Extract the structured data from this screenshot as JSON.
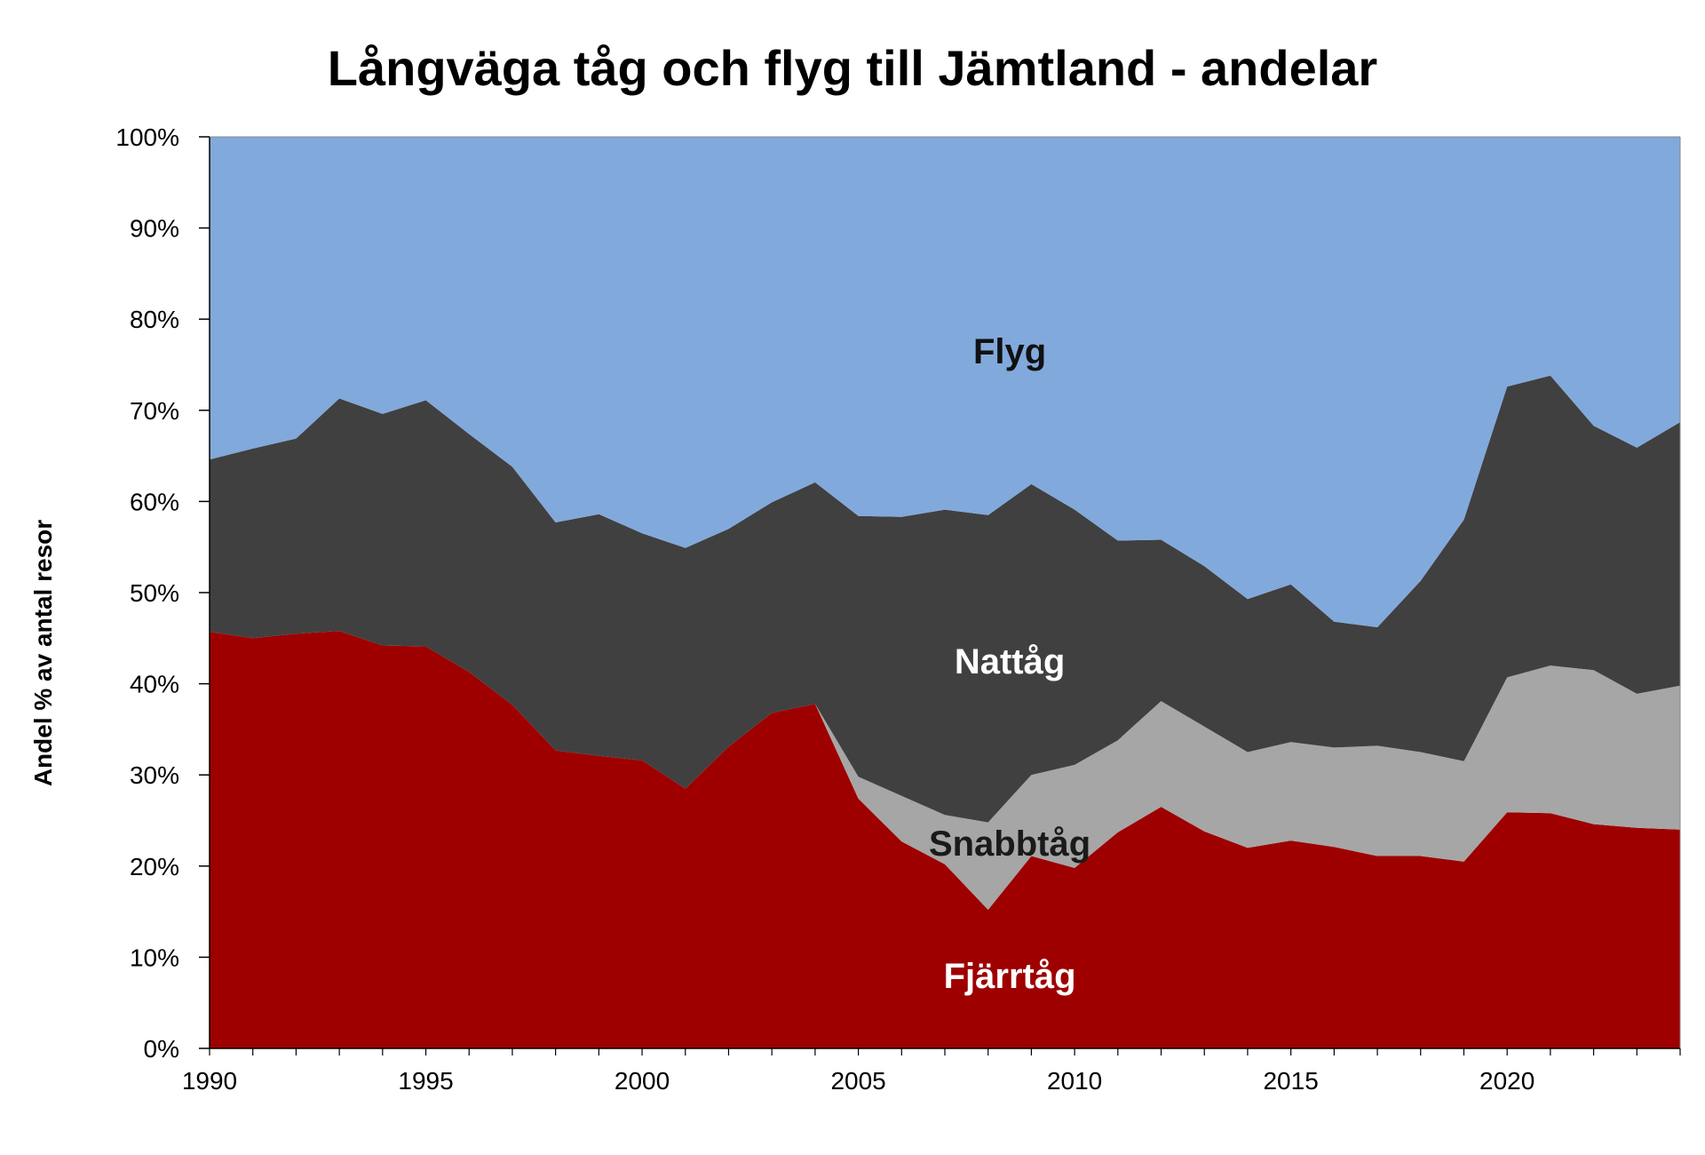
{
  "chart_data": {
    "type": "area",
    "stacked": true,
    "title": "Långväga tåg och flyg till Jämtland - andelar",
    "xlabel": "",
    "ylabel": "Andel % av antal resor",
    "x": [
      1990,
      1991,
      1992,
      1993,
      1994,
      1995,
      1996,
      1997,
      1998,
      1999,
      2000,
      2001,
      2002,
      2003,
      2004,
      2005,
      2006,
      2007,
      2008,
      2009,
      2010,
      2011,
      2012,
      2013,
      2014,
      2015,
      2016,
      2017,
      2018,
      2019,
      2020,
      2021,
      2022,
      2023,
      2024
    ],
    "xlim": [
      1990,
      2024
    ],
    "ylim": [
      0,
      100
    ],
    "x_ticks": [
      "1990",
      "1995",
      "2000",
      "2005",
      "2010",
      "2015",
      "2020"
    ],
    "y_ticks": [
      "0%",
      "10%",
      "20%",
      "30%",
      "40%",
      "50%",
      "60%",
      "70%",
      "80%",
      "90%",
      "100%"
    ],
    "grid": false,
    "legend": "none",
    "series": [
      {
        "name": "Fjärrtåg",
        "color": "#9e0000",
        "label_color": "#ffffff",
        "label_at": [
          2008.5,
          8
        ],
        "values": [
          45.7,
          45.0,
          45.5,
          45.8,
          44.2,
          44.1,
          41.3,
          37.7,
          32.7,
          32.1,
          31.6,
          28.5,
          33.1,
          36.8,
          37.8,
          27.4,
          22.7,
          20.2,
          15.2,
          21.1,
          19.8,
          23.7,
          26.5,
          23.8,
          22.0,
          22.8,
          22.1,
          21.1,
          21.1,
          20.5,
          25.9,
          25.8,
          24.6,
          24.2,
          24.0
        ]
      },
      {
        "name": "Snabbtåg",
        "color": "#a6a6a6",
        "label_color": "#1a1a1a",
        "label_at": [
          2008.5,
          22.5
        ],
        "values": [
          0,
          0,
          0,
          0,
          0,
          0,
          0,
          0,
          0,
          0,
          0,
          0,
          0,
          0,
          0,
          2.4,
          5.0,
          5.4,
          9.6,
          8.9,
          11.3,
          10.1,
          11.6,
          11.5,
          10.5,
          10.8,
          10.9,
          12.1,
          11.4,
          11.0,
          14.8,
          16.2,
          16.9,
          14.7,
          15.8
        ]
      },
      {
        "name": "Nattåg",
        "color": "#404040",
        "label_color": "#ffffff",
        "label_at": [
          2008.5,
          42.5
        ],
        "values": [
          18.9,
          20.8,
          21.4,
          25.5,
          25.4,
          27.0,
          26.1,
          26.1,
          25.0,
          26.5,
          24.9,
          26.4,
          23.9,
          23.1,
          24.3,
          28.6,
          30.6,
          33.5,
          33.7,
          31.9,
          28.0,
          21.9,
          17.7,
          17.6,
          16.8,
          17.3,
          13.8,
          13.0,
          18.8,
          26.5,
          31.9,
          31.8,
          26.8,
          27.0,
          28.9
        ]
      },
      {
        "name": "Flyg",
        "color": "#82a9dc",
        "label_color": "#111111",
        "label_at": [
          2008.5,
          76.5
        ],
        "values": [
          35.4,
          34.2,
          33.1,
          28.7,
          30.4,
          28.9,
          32.6,
          36.2,
          42.3,
          41.4,
          43.5,
          45.1,
          43.0,
          40.1,
          37.9,
          41.6,
          41.7,
          40.9,
          41.5,
          38.1,
          40.9,
          44.3,
          44.2,
          47.1,
          50.7,
          49.1,
          53.2,
          53.8,
          48.7,
          42.0,
          27.4,
          26.2,
          31.7,
          34.1,
          31.3
        ]
      }
    ]
  }
}
